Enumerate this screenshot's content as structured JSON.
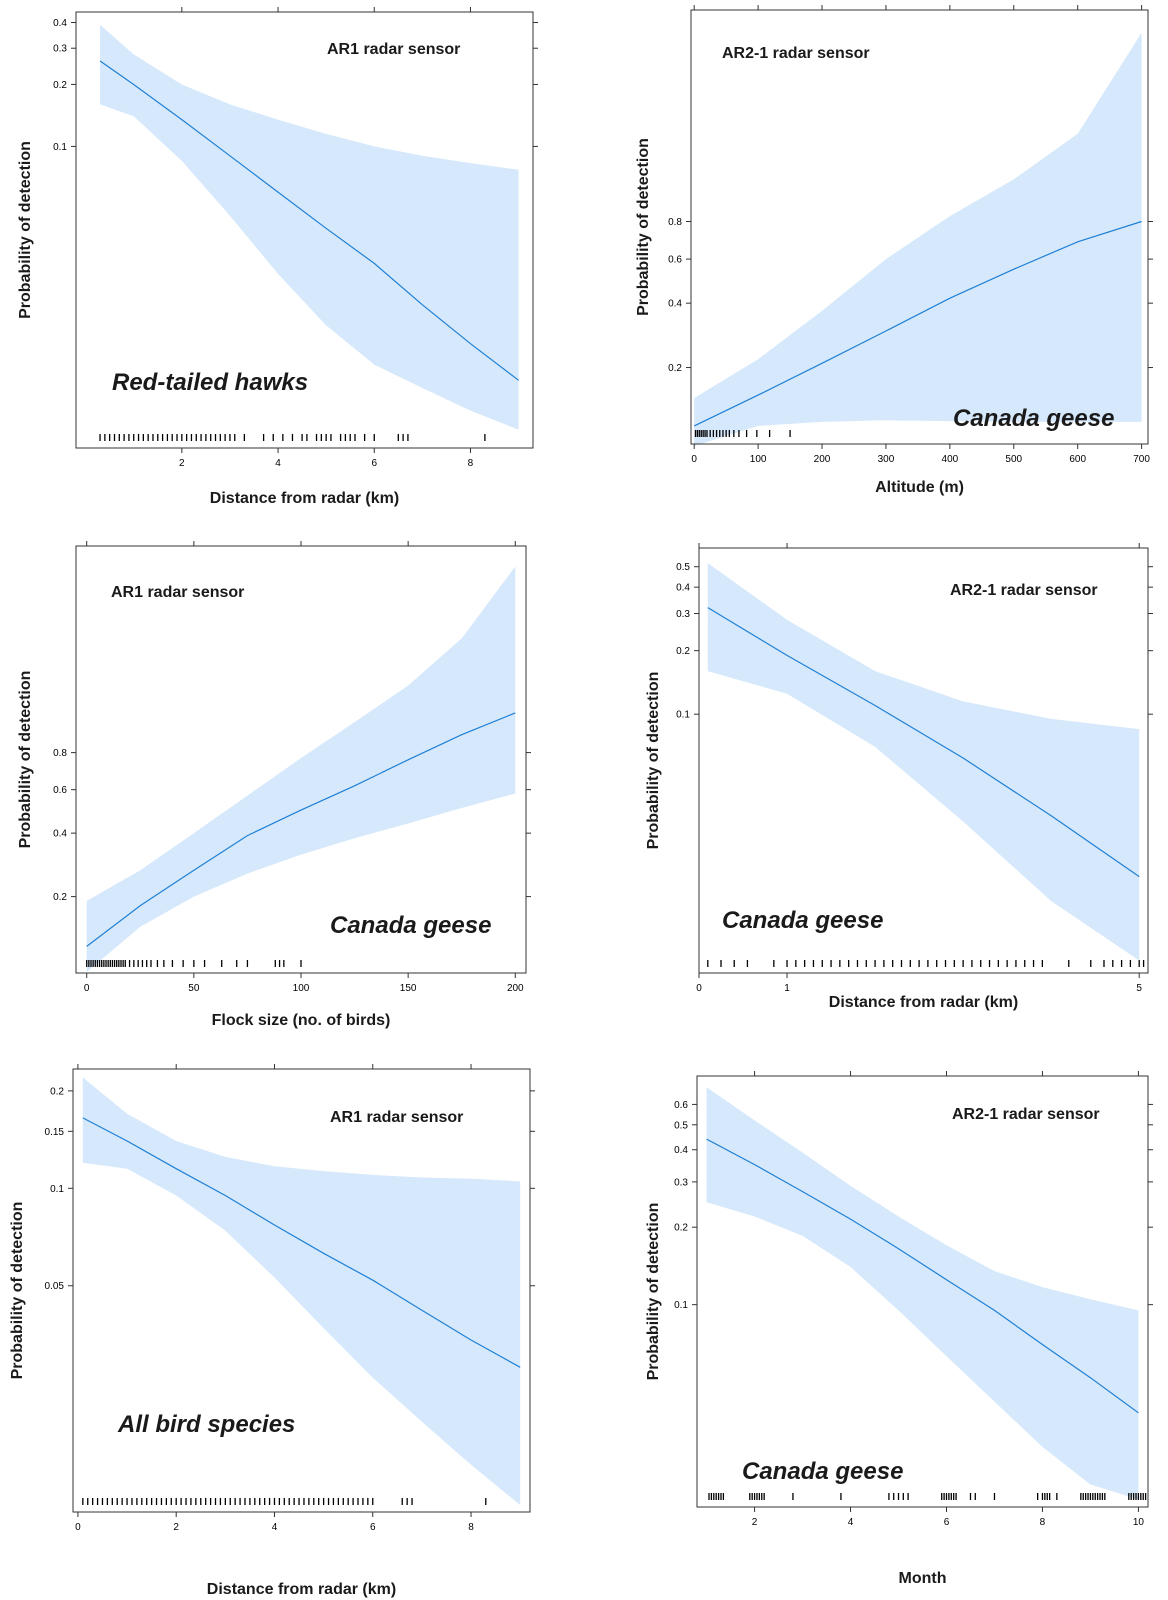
{
  "style": {
    "band_color": "#d6e8fb",
    "line_color": "#1f80d6"
  },
  "chart_data": [
    {
      "type": "line",
      "panel": "top-left",
      "sensor_label": "AR1 radar sensor",
      "species_label": "Red-tailed hawks",
      "xlabel": "Distance from radar (km)",
      "ylabel": "Probability of detection",
      "x_ticks": [
        2,
        4,
        6,
        8
      ],
      "y_ticks": [
        0.1,
        0.2,
        0.3,
        0.4
      ],
      "ylim": [
        0.0035,
        0.44
      ],
      "xlim": [
        -0.2,
        9.3
      ],
      "y_scale": "log",
      "series": [
        {
          "role": "fit",
          "x": [
            0.3,
            1,
            2,
            3,
            4,
            5,
            6,
            7,
            8,
            9
          ],
          "values": [
            0.26,
            0.2,
            0.135,
            0.09,
            0.06,
            0.04,
            0.027,
            0.017,
            0.011,
            0.0073
          ]
        },
        {
          "role": "upper",
          "x": [
            0.3,
            1,
            2,
            3,
            4,
            5,
            6,
            7,
            8,
            9
          ],
          "values": [
            0.39,
            0.28,
            0.2,
            0.16,
            0.135,
            0.115,
            0.1,
            0.09,
            0.083,
            0.077
          ]
        },
        {
          "role": "lower",
          "x": [
            0.3,
            1,
            2,
            3,
            4,
            5,
            6,
            7,
            8,
            9
          ],
          "values": [
            0.16,
            0.14,
            0.085,
            0.046,
            0.024,
            0.0135,
            0.0087,
            0.0067,
            0.0052,
            0.0042
          ]
        }
      ],
      "rug": [
        0.3,
        0.4,
        0.5,
        0.6,
        0.7,
        0.8,
        0.9,
        1.0,
        1.1,
        1.2,
        1.3,
        1.4,
        1.5,
        1.6,
        1.7,
        1.8,
        1.9,
        2.0,
        2.1,
        2.2,
        2.3,
        2.4,
        2.5,
        2.6,
        2.7,
        2.8,
        2.9,
        3.0,
        3.1,
        3.3,
        3.7,
        3.9,
        4.1,
        4.3,
        4.5,
        4.6,
        4.8,
        4.9,
        5.0,
        5.1,
        5.3,
        5.4,
        5.5,
        5.6,
        5.8,
        6.0,
        6.5,
        6.6,
        6.7,
        8.3
      ]
    },
    {
      "type": "line",
      "panel": "top-right",
      "sensor_label": "AR2-1 radar sensor",
      "species_label": "Canada geese",
      "xlabel": "Altitude (m)",
      "ylabel": "Probability of detection",
      "x_ticks": [
        0,
        100,
        200,
        300,
        400,
        500,
        600,
        700
      ],
      "y_ticks": [
        0.2,
        0.4,
        0.6,
        0.8
      ],
      "ylim": [
        0.08,
        1.58
      ],
      "xlim": [
        -5,
        710
      ],
      "y_scale": "logit",
      "series": [
        {
          "role": "fit",
          "x": [
            0,
            100,
            200,
            300,
            400,
            500,
            600,
            700
          ],
          "values": [
            0.1,
            0.145,
            0.21,
            0.3,
            0.42,
            0.55,
            0.69,
            0.8
          ]
        },
        {
          "role": "upper",
          "x": [
            0,
            100,
            200,
            300,
            400,
            500,
            600,
            700
          ],
          "values": [
            0.14,
            0.22,
            0.37,
            0.6,
            0.83,
            1.03,
            1.25,
            1.55
          ]
        },
        {
          "role": "lower",
          "x": [
            0,
            100,
            200,
            300,
            400,
            500,
            600,
            700
          ],
          "values": [
            0.078,
            0.1,
            0.105,
            0.107,
            0.106,
            0.105,
            0.105,
            0.105
          ]
        }
      ],
      "rug": [
        2,
        5,
        8,
        11,
        14,
        17,
        20,
        25,
        30,
        35,
        40,
        45,
        50,
        55,
        62,
        70,
        82,
        98,
        118,
        150
      ]
    },
    {
      "type": "line",
      "panel": "middle-left",
      "sensor_label": "AR1 radar sensor",
      "species_label": "Canada geese",
      "xlabel": "Flock size (no. of birds)",
      "ylabel": "Probability of detection",
      "x_ticks": [
        0,
        50,
        100,
        150,
        200
      ],
      "y_ticks": [
        0.2,
        0.4,
        0.6,
        0.8
      ],
      "ylim": [
        0.08,
        1.58
      ],
      "xlim": [
        -5,
        205
      ],
      "y_scale": "logit",
      "series": [
        {
          "role": "fit",
          "x": [
            0,
            25,
            50,
            75,
            100,
            125,
            150,
            175,
            200
          ],
          "values": [
            0.11,
            0.18,
            0.27,
            0.39,
            0.5,
            0.62,
            0.76,
            0.9,
            1.02
          ]
        },
        {
          "role": "upper",
          "x": [
            0,
            25,
            50,
            75,
            100,
            125,
            150,
            175,
            200
          ],
          "values": [
            0.19,
            0.27,
            0.4,
            0.57,
            0.77,
            0.97,
            1.16,
            1.36,
            1.55
          ]
        },
        {
          "role": "lower",
          "x": [
            0,
            25,
            50,
            75,
            100,
            125,
            150,
            175,
            200
          ],
          "values": [
            0.08,
            0.14,
            0.2,
            0.26,
            0.32,
            0.38,
            0.44,
            0.51,
            0.58
          ]
        }
      ],
      "rug": [
        0,
        1,
        2,
        3,
        4,
        5,
        6,
        7,
        8,
        9,
        10,
        11,
        12,
        13,
        14,
        15,
        16,
        17,
        18,
        20,
        22,
        24,
        26,
        28,
        30,
        33,
        36,
        40,
        45,
        50,
        55,
        63,
        70,
        75,
        88,
        90,
        92,
        100
      ]
    },
    {
      "type": "line",
      "panel": "middle-right",
      "sensor_label": "AR2-1 radar sensor",
      "species_label": "Canada geese",
      "xlabel": "Distance from radar (km)",
      "ylabel": "Probability of detection",
      "x_ticks": [
        0,
        1,
        5
      ],
      "y_ticks": [
        0.1,
        0.2,
        0.3,
        0.4,
        0.5
      ],
      "ylim": [
        0.006,
        0.6
      ],
      "xlim": [
        0,
        5.1
      ],
      "y_scale": "log",
      "series": [
        {
          "role": "fit",
          "x": [
            0.1,
            1,
            2,
            3,
            4,
            5
          ],
          "values": [
            0.32,
            0.19,
            0.11,
            0.062,
            0.033,
            0.017
          ]
        },
        {
          "role": "upper",
          "x": [
            0.1,
            1,
            2,
            3,
            4,
            5
          ],
          "values": [
            0.52,
            0.28,
            0.16,
            0.115,
            0.095,
            0.085
          ]
        },
        {
          "role": "lower",
          "x": [
            0.1,
            1,
            2,
            3,
            4,
            5
          ],
          "values": [
            0.16,
            0.125,
            0.07,
            0.031,
            0.013,
            0.0068
          ]
        }
      ],
      "rug": [
        0.1,
        0.25,
        0.4,
        0.55,
        0.85,
        1.0,
        1.1,
        1.2,
        1.3,
        1.4,
        1.5,
        1.6,
        1.7,
        1.8,
        1.9,
        2.0,
        2.1,
        2.2,
        2.3,
        2.4,
        2.5,
        2.6,
        2.7,
        2.8,
        2.9,
        3.0,
        3.1,
        3.2,
        3.3,
        3.4,
        3.5,
        3.6,
        3.7,
        3.8,
        3.9,
        4.2,
        4.45,
        4.6,
        4.7,
        4.8,
        4.9,
        5.0,
        5.05
      ]
    },
    {
      "type": "line",
      "panel": "bottom-left",
      "sensor_label": "AR1 radar sensor",
      "species_label": "All bird species",
      "xlabel": "Distance from radar (km)",
      "ylabel": "Probability of detection",
      "x_ticks": [
        0,
        2,
        4,
        6,
        8
      ],
      "y_ticks": [
        0.05,
        0.1,
        0.15,
        0.2
      ],
      "ylim": [
        0.01,
        0.232
      ],
      "xlim": [
        -0.1,
        9.2
      ],
      "y_scale": "log",
      "series": [
        {
          "role": "fit",
          "x": [
            0.1,
            1,
            2,
            3,
            4,
            5,
            6,
            7,
            8,
            9
          ],
          "values": [
            0.165,
            0.14,
            0.115,
            0.095,
            0.077,
            0.063,
            0.052,
            0.042,
            0.034,
            0.028
          ]
        },
        {
          "role": "upper",
          "x": [
            0.1,
            1,
            2,
            3,
            4,
            5,
            6,
            7,
            8,
            9
          ],
          "values": [
            0.22,
            0.17,
            0.14,
            0.125,
            0.117,
            0.113,
            0.11,
            0.108,
            0.107,
            0.105
          ]
        },
        {
          "role": "lower",
          "x": [
            0.1,
            1,
            2,
            3,
            4,
            5,
            6,
            7,
            8,
            9
          ],
          "values": [
            0.12,
            0.115,
            0.095,
            0.074,
            0.053,
            0.037,
            0.026,
            0.019,
            0.014,
            0.0105
          ]
        }
      ],
      "rug": [
        0.1,
        0.2,
        0.3,
        0.4,
        0.5,
        0.6,
        0.7,
        0.8,
        0.9,
        1.0,
        1.1,
        1.2,
        1.3,
        1.4,
        1.5,
        1.6,
        1.7,
        1.8,
        1.9,
        2.0,
        2.1,
        2.2,
        2.3,
        2.4,
        2.5,
        2.6,
        2.7,
        2.8,
        2.9,
        3.0,
        3.1,
        3.2,
        3.3,
        3.4,
        3.5,
        3.6,
        3.7,
        3.8,
        3.9,
        4.0,
        4.1,
        4.2,
        4.3,
        4.4,
        4.5,
        4.6,
        4.7,
        4.8,
        4.9,
        5.0,
        5.1,
        5.2,
        5.3,
        5.4,
        5.5,
        5.6,
        5.7,
        5.8,
        5.9,
        6.0,
        6.6,
        6.7,
        6.8,
        8.3
      ]
    },
    {
      "type": "line",
      "panel": "bottom-right",
      "sensor_label": "AR2-1 radar sensor",
      "species_label": "Canada geese",
      "xlabel": "Month",
      "ylabel": "Probability of detection",
      "x_ticks": [
        2,
        4,
        6,
        8,
        10
      ],
      "y_ticks": [
        0.1,
        0.2,
        0.3,
        0.4,
        0.5,
        0.6
      ],
      "ylim": [
        0.0165,
        0.76
      ],
      "xlim": [
        0.8,
        10.2
      ],
      "y_scale": "log",
      "series": [
        {
          "role": "fit",
          "x": [
            1,
            2,
            3,
            4,
            5,
            6,
            7,
            8,
            9,
            10
          ],
          "values": [
            0.44,
            0.35,
            0.275,
            0.215,
            0.165,
            0.125,
            0.095,
            0.07,
            0.052,
            0.038
          ]
        },
        {
          "role": "upper",
          "x": [
            1,
            2,
            3,
            4,
            5,
            6,
            7,
            8,
            9,
            10
          ],
          "values": [
            0.7,
            0.52,
            0.39,
            0.29,
            0.22,
            0.17,
            0.135,
            0.117,
            0.105,
            0.095
          ]
        },
        {
          "role": "lower",
          "x": [
            1,
            2,
            3,
            4,
            5,
            6,
            7,
            8,
            9,
            10
          ],
          "values": [
            0.25,
            0.22,
            0.185,
            0.14,
            0.095,
            0.063,
            0.042,
            0.028,
            0.02,
            0.0175
          ]
        }
      ],
      "rug": [
        1.05,
        1.1,
        1.15,
        1.2,
        1.25,
        1.3,
        1.35,
        1.9,
        1.95,
        2.0,
        2.05,
        2.1,
        2.15,
        2.2,
        2.8,
        3.8,
        4.8,
        4.9,
        5.0,
        5.1,
        5.2,
        5.9,
        5.95,
        6.0,
        6.05,
        6.1,
        6.15,
        6.2,
        6.5,
        6.6,
        7.0,
        7.9,
        8.0,
        8.05,
        8.1,
        8.15,
        8.3,
        8.8,
        8.85,
        8.9,
        8.95,
        9.0,
        9.05,
        9.1,
        9.15,
        9.2,
        9.25,
        9.3,
        9.8,
        9.85,
        9.9,
        9.95,
        10.0,
        10.05,
        10.1,
        10.15
      ]
    }
  ]
}
